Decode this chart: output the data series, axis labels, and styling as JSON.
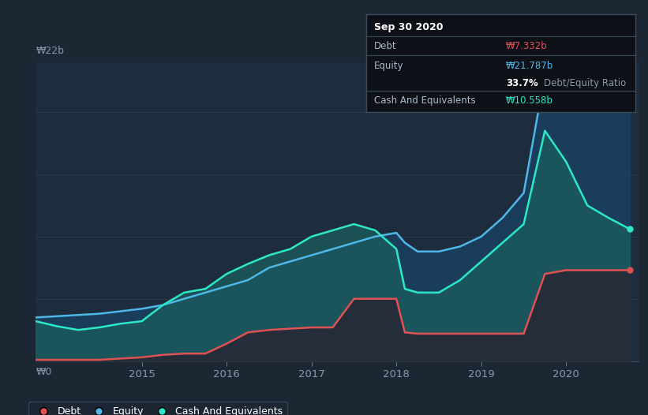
{
  "background_color": "#1c2733",
  "plot_bg_color": "#1e2d3d",
  "title": "Sep 30 2020",
  "tooltip": {
    "debt_label": "Debt",
    "debt_value": "₩7.332b",
    "equity_label": "Equity",
    "equity_value": "₩21.787b",
    "ratio_text": "33.7% Debt/Equity Ratio",
    "cash_label": "Cash And Equivalents",
    "cash_value": "₩10.558b"
  },
  "y_label_top": "₩22b",
  "y_label_bottom": "₩0",
  "x_ticks": [
    "2015",
    "2016",
    "2017",
    "2018",
    "2019",
    "2020"
  ],
  "x_tick_positions": [
    2015,
    2016,
    2017,
    2018,
    2019,
    2020
  ],
  "legend": [
    {
      "label": "Debt",
      "color": "#e05252"
    },
    {
      "label": "Equity",
      "color": "#4db8e8"
    },
    {
      "label": "Cash And Equivalents",
      "color": "#2de8c8"
    }
  ],
  "debt_color": "#e05252",
  "equity_color": "#4db8e8",
  "cash_color": "#2de8c8",
  "equity_fill_color": "#1a3d5c",
  "cash_fill_color": "#1a5c5c",
  "debt_fill_color": "#252d3a",
  "grid_color": "#2a3a4a",
  "time_points": [
    2013.75,
    2014.0,
    2014.25,
    2014.5,
    2014.75,
    2015.0,
    2015.25,
    2015.5,
    2015.75,
    2016.0,
    2016.25,
    2016.5,
    2016.75,
    2017.0,
    2017.25,
    2017.5,
    2017.75,
    2018.0,
    2018.1,
    2018.25,
    2018.5,
    2018.75,
    2019.0,
    2019.25,
    2019.5,
    2019.75,
    2020.0,
    2020.25,
    2020.5,
    2020.75
  ],
  "debt": [
    0.1,
    0.1,
    0.1,
    0.1,
    0.2,
    0.3,
    0.5,
    0.6,
    0.6,
    1.4,
    2.3,
    2.5,
    2.6,
    2.7,
    2.7,
    5.0,
    5.0,
    5.0,
    2.3,
    2.2,
    2.2,
    2.2,
    2.2,
    2.2,
    2.2,
    7.0,
    7.3,
    7.3,
    7.3,
    7.3
  ],
  "equity": [
    3.5,
    3.6,
    3.7,
    3.8,
    4.0,
    4.2,
    4.5,
    5.0,
    5.5,
    6.0,
    6.5,
    7.5,
    8.0,
    8.5,
    9.0,
    9.5,
    10.0,
    10.3,
    9.5,
    8.8,
    8.8,
    9.2,
    10.0,
    11.5,
    13.5,
    23.0,
    22.0,
    20.5,
    22.5,
    21.8
  ],
  "cash": [
    3.2,
    2.8,
    2.5,
    2.7,
    3.0,
    3.2,
    4.5,
    5.5,
    5.8,
    7.0,
    7.8,
    8.5,
    9.0,
    10.0,
    10.5,
    11.0,
    10.5,
    9.0,
    5.8,
    5.5,
    5.5,
    6.5,
    8.0,
    9.5,
    11.0,
    18.5,
    16.0,
    12.5,
    11.5,
    10.6
  ],
  "ylim": [
    0,
    24
  ],
  "xlim": [
    2013.75,
    2020.85
  ]
}
